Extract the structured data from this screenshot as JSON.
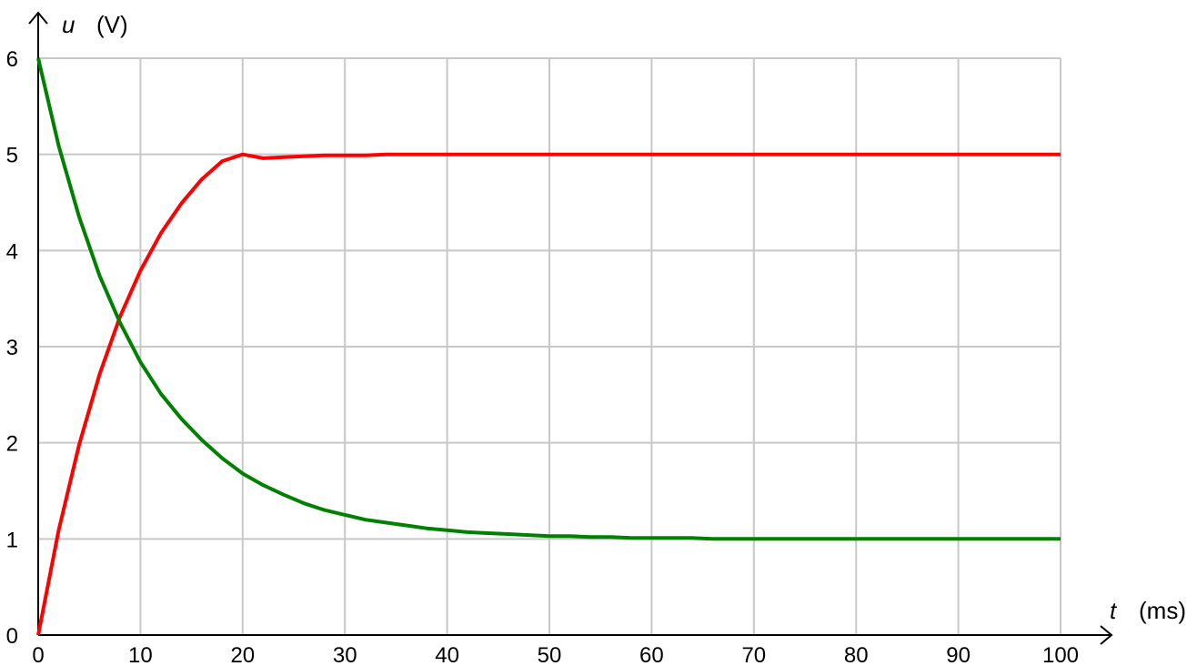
{
  "chart_data": {
    "type": "line",
    "title": "",
    "xlabel_symbol": "t",
    "xlabel_unit": "(ms)",
    "ylabel_symbol": "u",
    "ylabel_unit": "(V)",
    "xlim": [
      0,
      100
    ],
    "ylim": [
      0,
      6
    ],
    "xticks": [
      0,
      10,
      20,
      30,
      40,
      50,
      60,
      70,
      80,
      90,
      100
    ],
    "yticks": [
      0,
      1,
      2,
      3,
      4,
      5,
      6
    ],
    "grid": true,
    "legend": "none",
    "series": [
      {
        "color": "#ff0000",
        "x": [
          0,
          2,
          4,
          6,
          8,
          10,
          12,
          14,
          16,
          18,
          20,
          22,
          24,
          26,
          28,
          30,
          32,
          34,
          36,
          38,
          40,
          42,
          44,
          46,
          48,
          50,
          52,
          54,
          56,
          58,
          60,
          62,
          64,
          66,
          68,
          70,
          72,
          74,
          76,
          78,
          80,
          82,
          84,
          86,
          88,
          90,
          92,
          94,
          96,
          98,
          100
        ],
        "values": [
          0,
          1.09,
          1.98,
          2.71,
          3.31,
          3.79,
          4.18,
          4.49,
          4.74,
          4.93,
          5.0,
          4.96,
          4.97,
          4.98,
          4.99,
          4.99,
          4.99,
          5.0,
          5.0,
          5.0,
          5.0,
          5.0,
          5.0,
          5.0,
          5.0,
          5.0,
          5.0,
          5.0,
          5.0,
          5.0,
          5.0,
          5.0,
          5.0,
          5.0,
          5.0,
          5.0,
          5.0,
          5.0,
          5.0,
          5.0,
          5.0,
          5.0,
          5.0,
          5.0,
          5.0,
          5.0,
          5.0,
          5.0,
          5.0,
          5.0,
          5.0
        ]
      },
      {
        "color": "#008000",
        "x": [
          0,
          2,
          4,
          6,
          8,
          10,
          12,
          14,
          16,
          18,
          20,
          22,
          24,
          26,
          28,
          30,
          32,
          34,
          36,
          38,
          40,
          42,
          44,
          46,
          48,
          50,
          52,
          54,
          56,
          58,
          60,
          62,
          64,
          66,
          68,
          70,
          72,
          74,
          76,
          78,
          80,
          82,
          84,
          86,
          88,
          90,
          92,
          94,
          96,
          98,
          100
        ],
        "values": [
          6.0,
          5.09,
          4.35,
          3.74,
          3.25,
          2.84,
          2.51,
          2.25,
          2.03,
          1.84,
          1.68,
          1.56,
          1.46,
          1.37,
          1.3,
          1.25,
          1.2,
          1.17,
          1.14,
          1.11,
          1.09,
          1.07,
          1.06,
          1.05,
          1.04,
          1.03,
          1.03,
          1.02,
          1.02,
          1.01,
          1.01,
          1.01,
          1.01,
          1.0,
          1.0,
          1.0,
          1.0,
          1.0,
          1.0,
          1.0,
          1.0,
          1.0,
          1.0,
          1.0,
          1.0,
          1.0,
          1.0,
          1.0,
          1.0,
          1.0,
          1.0
        ]
      }
    ]
  }
}
